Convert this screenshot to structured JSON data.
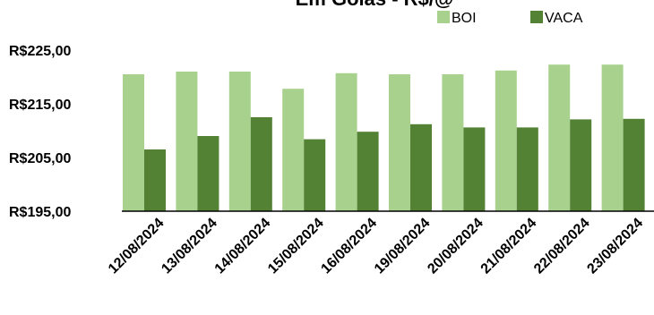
{
  "chart_data": {
    "type": "bar",
    "title": "Em Goiás - R$/@",
    "categories": [
      "12/08/2024",
      "13/08/2024",
      "14/08/2024",
      "15/08/2024",
      "16/08/2024",
      "19/08/2024",
      "20/08/2024",
      "21/08/2024",
      "22/08/2024",
      "23/08/2024"
    ],
    "series": [
      {
        "name": "BOI",
        "color": "#a9d18e",
        "values": [
          220.5,
          221.0,
          221.0,
          217.8,
          220.7,
          220.5,
          220.5,
          221.2,
          222.3,
          222.3
        ]
      },
      {
        "name": "VACA",
        "color": "#548235",
        "values": [
          206.5,
          209.0,
          212.5,
          208.4,
          209.8,
          211.2,
          210.6,
          210.6,
          212.1,
          212.2
        ]
      }
    ],
    "ylim": [
      195,
      225
    ],
    "yticks": [
      {
        "value": 195,
        "label": "R$195,00"
      },
      {
        "value": 205,
        "label": "R$205,00"
      },
      {
        "value": 215,
        "label": "R$215,00"
      },
      {
        "value": 225,
        "label": "R$225,00"
      }
    ],
    "legend": "top-right",
    "grid": false
  }
}
